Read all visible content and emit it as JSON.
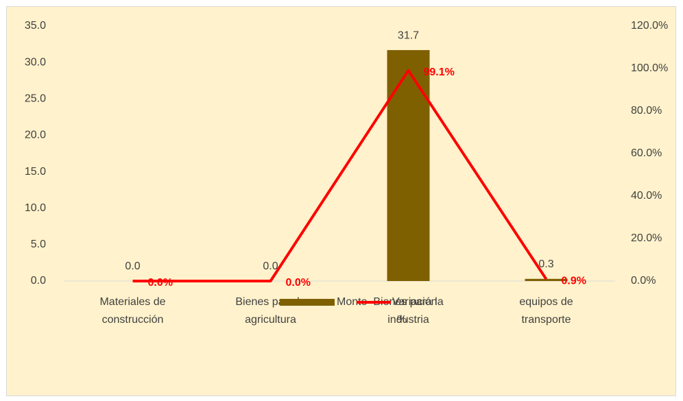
{
  "chart_data": {
    "type": "bar+line",
    "categories": [
      "Materiales de construcción",
      "Bienes para la agricultura",
      "Bienes para la industria",
      "equipos de transporte"
    ],
    "series": [
      {
        "name": "Monto",
        "type": "bar",
        "color": "#7f6000",
        "values": [
          0.0,
          0.0,
          31.7,
          0.3
        ],
        "value_labels": [
          "0.0",
          "0.0",
          "31.7",
          "0.3"
        ]
      },
      {
        "name": "Variación %",
        "type": "line",
        "axis": "y2",
        "color": "#ff0000",
        "values": [
          0.0,
          0.0,
          99.1,
          0.9
        ],
        "value_labels": [
          "0.0%",
          "0.0%",
          "99.1%",
          "0.9%"
        ]
      }
    ],
    "ylim": [
      0,
      35
    ],
    "yticks": [
      {
        "value": 0,
        "label": "0.0"
      },
      {
        "value": 5,
        "label": "5.0"
      },
      {
        "value": 10,
        "label": "10.0"
      },
      {
        "value": 15,
        "label": "15.0"
      },
      {
        "value": 20,
        "label": "20.0"
      },
      {
        "value": 25,
        "label": "25.0"
      },
      {
        "value": 30,
        "label": "30.0"
      },
      {
        "value": 35,
        "label": "35.0"
      }
    ],
    "y2lim": [
      0,
      120
    ],
    "y2ticks": [
      {
        "value": 0,
        "label": "0.0%"
      },
      {
        "value": 20,
        "label": "20.0%"
      },
      {
        "value": 40,
        "label": "40.0%"
      },
      {
        "value": 60,
        "label": "60.0%"
      },
      {
        "value": 80,
        "label": "80.0%"
      },
      {
        "value": 100,
        "label": "100.0%"
      },
      {
        "value": 120,
        "label": "120.0%"
      }
    ],
    "grid": false,
    "legend": "bottom"
  }
}
